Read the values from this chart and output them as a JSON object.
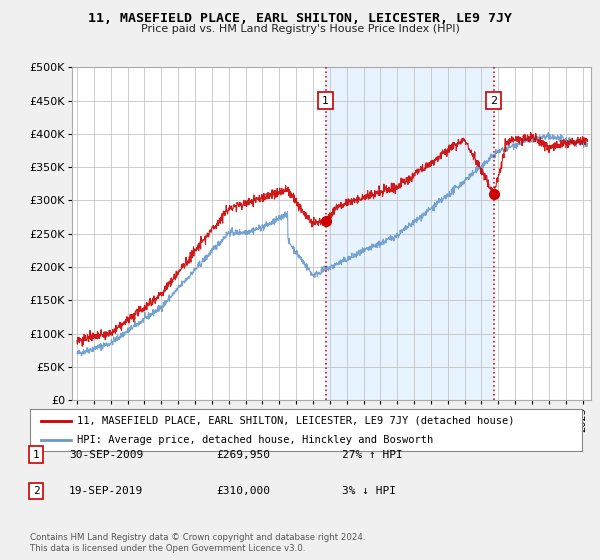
{
  "title": "11, MASEFIELD PLACE, EARL SHILTON, LEICESTER, LE9 7JY",
  "subtitle": "Price paid vs. HM Land Registry's House Price Index (HPI)",
  "ylim": [
    0,
    500000
  ],
  "yticks": [
    0,
    50000,
    100000,
    150000,
    200000,
    250000,
    300000,
    350000,
    400000,
    450000,
    500000
  ],
  "line1_color": "#cc0000",
  "line2_color": "#6699cc",
  "line1_label": "11, MASEFIELD PLACE, EARL SHILTON, LEICESTER, LE9 7JY (detached house)",
  "line2_label": "HPI: Average price, detached house, Hinckley and Bosworth",
  "annotation1_date": "30-SEP-2009",
  "annotation1_price": "£269,950",
  "annotation1_hpi": "27% ↑ HPI",
  "annotation2_date": "19-SEP-2019",
  "annotation2_price": "£310,000",
  "annotation2_hpi": "3% ↓ HPI",
  "footnote": "Contains HM Land Registry data © Crown copyright and database right 2024.\nThis data is licensed under the Open Government Licence v3.0.",
  "vline1_x": 2009.75,
  "vline2_x": 2019.72,
  "marker1_x": 2009.75,
  "marker1_y": 269950,
  "marker2_x": 2019.72,
  "marker2_y": 310000,
  "background_color": "#f0f0f0",
  "plot_bg_color": "#ffffff",
  "shade_color": "#ddeeff",
  "xlim_left": 1994.7,
  "xlim_right": 2025.5
}
